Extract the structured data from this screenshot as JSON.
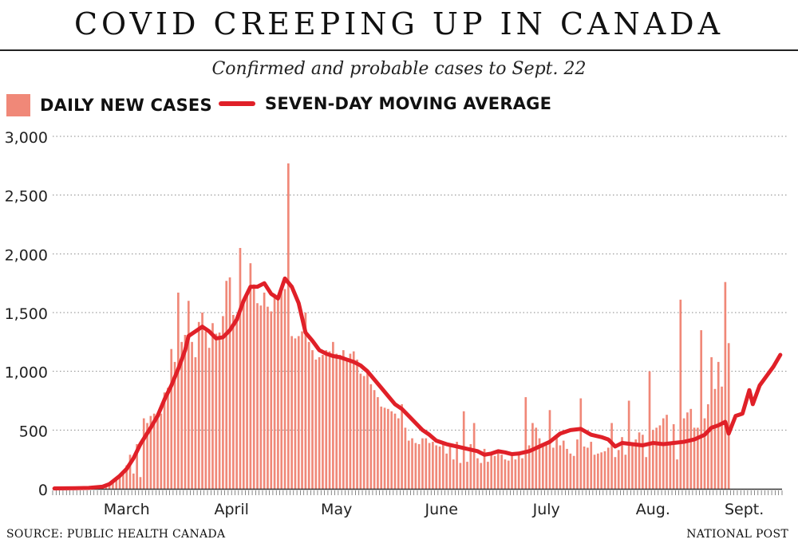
{
  "header": {
    "title": "COVID CREEPING UP IN CANADA",
    "subtitle": "Confirmed and probable cases to Sept. 22"
  },
  "legend": {
    "bars_label": "DAILY NEW CASES",
    "line_label": "SEVEN-DAY MOVING AVERAGE"
  },
  "footer": {
    "source": "SOURCE: PUBLIC HEALTH CANADA",
    "credit": "NATIONAL POST"
  },
  "colors": {
    "bars": "#f08878",
    "line": "#e02028",
    "grid": "#888888",
    "text": "#111111"
  },
  "chart_data": {
    "type": "bar",
    "overlay_type": "line",
    "x_start": "2020-02-24",
    "x_end": "2020-09-22",
    "ylim": [
      0,
      3000
    ],
    "yticks": [
      0,
      500,
      1000,
      1500,
      2000,
      2500,
      3000
    ],
    "ytick_labels": [
      "0",
      "500",
      "1,000",
      "1,500",
      "2,000",
      "2,500",
      "3,000"
    ],
    "grid": "horizontal dotted",
    "legend": "top-left",
    "month_labels": [
      {
        "label": "March",
        "start": "2020-03-01",
        "end": "2020-03-31"
      },
      {
        "label": "April",
        "start": "2020-04-01",
        "end": "2020-04-30"
      },
      {
        "label": "May",
        "start": "2020-05-01",
        "end": "2020-05-31"
      },
      {
        "label": "June",
        "start": "2020-06-01",
        "end": "2020-06-30"
      },
      {
        "label": "July",
        "start": "2020-07-01",
        "end": "2020-07-31"
      },
      {
        "label": "Aug.",
        "start": "2020-08-01",
        "end": "2020-08-31"
      },
      {
        "label": "Sept.",
        "start": "2020-09-01",
        "end": "2020-09-22"
      }
    ],
    "series": [
      {
        "name": "DAILY NEW CASES",
        "type": "bar",
        "values": [
          1,
          1,
          2,
          2,
          3,
          3,
          4,
          5,
          6,
          8,
          10,
          10,
          12,
          15,
          20,
          30,
          40,
          50,
          80,
          100,
          150,
          200,
          290,
          130,
          380,
          100,
          600,
          560,
          620,
          640,
          640,
          640,
          820,
          860,
          1190,
          1080,
          1670,
          1250,
          1310,
          1600,
          1250,
          1120,
          1420,
          1500,
          1340,
          1200,
          1410,
          1320,
          1330,
          1470,
          1770,
          1800,
          1480,
          1440,
          2050,
          1590,
          1660,
          1920,
          1740,
          1580,
          1560,
          1670,
          1550,
          1510,
          1660,
          1640,
          1680,
          1700,
          2770,
          1300,
          1280,
          1300,
          1340,
          1500,
          1250,
          1180,
          1100,
          1120,
          1140,
          1180,
          1170,
          1250,
          1150,
          1140,
          1180,
          1110,
          1150,
          1170,
          1100,
          980,
          960,
          1000,
          890,
          840,
          780,
          700,
          690,
          680,
          660,
          640,
          600,
          720,
          520,
          410,
          430,
          390,
          380,
          430,
          430,
          390,
          400,
          370,
          360,
          390,
          300,
          370,
          250,
          400,
          220,
          660,
          230,
          380,
          560,
          260,
          220,
          340,
          230,
          300,
          280,
          320,
          290,
          250,
          240,
          280,
          250,
          300,
          260,
          780,
          370,
          560,
          520,
          430,
          370,
          370,
          670,
          350,
          430,
          370,
          410,
          340,
          300,
          280,
          420,
          770,
          360,
          350,
          400,
          290,
          300,
          310,
          320,
          350,
          560,
          270,
          330,
          440,
          290,
          750,
          370,
          420,
          480,
          460,
          270,
          1000,
          500,
          520,
          540,
          600,
          630,
          400,
          550,
          250,
          1610,
          600,
          650,
          680,
          520,
          520,
          1350,
          600,
          720,
          1120,
          850,
          1080,
          870,
          1760,
          1240
        ],
        "values_note": "daily bars Feb 24 - Sept 22"
      },
      {
        "name": "SEVEN-DAY MOVING AVERAGE",
        "type": "line",
        "points": [
          [
            "2020-02-24",
            3
          ],
          [
            "2020-03-01",
            5
          ],
          [
            "2020-03-05",
            8
          ],
          [
            "2020-03-09",
            18
          ],
          [
            "2020-03-11",
            40
          ],
          [
            "2020-03-14",
            110
          ],
          [
            "2020-03-16",
            170
          ],
          [
            "2020-03-18",
            260
          ],
          [
            "2020-03-20",
            380
          ],
          [
            "2020-03-23",
            520
          ],
          [
            "2020-03-25",
            620
          ],
          [
            "2020-03-27",
            760
          ],
          [
            "2020-03-29",
            880
          ],
          [
            "2020-03-31",
            1020
          ],
          [
            "2020-04-02",
            1180
          ],
          [
            "2020-04-03",
            1300
          ],
          [
            "2020-04-05",
            1340
          ],
          [
            "2020-04-07",
            1380
          ],
          [
            "2020-04-09",
            1340
          ],
          [
            "2020-04-11",
            1280
          ],
          [
            "2020-04-13",
            1290
          ],
          [
            "2020-04-15",
            1350
          ],
          [
            "2020-04-17",
            1440
          ],
          [
            "2020-04-19",
            1600
          ],
          [
            "2020-04-21",
            1720
          ],
          [
            "2020-04-23",
            1720
          ],
          [
            "2020-04-25",
            1750
          ],
          [
            "2020-04-27",
            1660
          ],
          [
            "2020-04-29",
            1620
          ],
          [
            "2020-05-01",
            1790
          ],
          [
            "2020-05-03",
            1720
          ],
          [
            "2020-05-05",
            1580
          ],
          [
            "2020-05-07",
            1330
          ],
          [
            "2020-05-09",
            1260
          ],
          [
            "2020-05-11",
            1180
          ],
          [
            "2020-05-13",
            1150
          ],
          [
            "2020-05-15",
            1130
          ],
          [
            "2020-05-17",
            1120
          ],
          [
            "2020-05-19",
            1100
          ],
          [
            "2020-05-21",
            1080
          ],
          [
            "2020-05-23",
            1050
          ],
          [
            "2020-05-25",
            1000
          ],
          [
            "2020-05-27",
            930
          ],
          [
            "2020-05-29",
            860
          ],
          [
            "2020-05-31",
            790
          ],
          [
            "2020-06-02",
            720
          ],
          [
            "2020-06-04",
            680
          ],
          [
            "2020-06-06",
            620
          ],
          [
            "2020-06-08",
            560
          ],
          [
            "2020-06-10",
            500
          ],
          [
            "2020-06-12",
            460
          ],
          [
            "2020-06-14",
            410
          ],
          [
            "2020-06-17",
            380
          ],
          [
            "2020-06-20",
            360
          ],
          [
            "2020-06-23",
            340
          ],
          [
            "2020-06-26",
            320
          ],
          [
            "2020-06-28",
            290
          ],
          [
            "2020-06-30",
            300
          ],
          [
            "2020-07-02",
            320
          ],
          [
            "2020-07-04",
            310
          ],
          [
            "2020-07-06",
            295
          ],
          [
            "2020-07-08",
            300
          ],
          [
            "2020-07-11",
            320
          ],
          [
            "2020-07-14",
            360
          ],
          [
            "2020-07-17",
            400
          ],
          [
            "2020-07-20",
            470
          ],
          [
            "2020-07-23",
            500
          ],
          [
            "2020-07-26",
            510
          ],
          [
            "2020-07-29",
            460
          ],
          [
            "2020-08-01",
            440
          ],
          [
            "2020-08-03",
            420
          ],
          [
            "2020-08-05",
            360
          ],
          [
            "2020-08-07",
            390
          ],
          [
            "2020-08-10",
            380
          ],
          [
            "2020-08-13",
            370
          ],
          [
            "2020-08-16",
            390
          ],
          [
            "2020-08-19",
            380
          ],
          [
            "2020-08-22",
            390
          ],
          [
            "2020-08-25",
            400
          ],
          [
            "2020-08-28",
            420
          ],
          [
            "2020-08-31",
            460
          ],
          [
            "2020-09-02",
            520
          ],
          [
            "2020-09-04",
            540
          ],
          [
            "2020-09-06",
            570
          ],
          [
            "2020-09-07",
            470
          ],
          [
            "2020-09-09",
            620
          ],
          [
            "2020-09-11",
            640
          ],
          [
            "2020-09-13",
            840
          ],
          [
            "2020-09-14",
            720
          ],
          [
            "2020-09-16",
            880
          ],
          [
            "2020-09-18",
            960
          ],
          [
            "2020-09-20",
            1040
          ],
          [
            "2020-09-22",
            1140
          ]
        ]
      }
    ]
  }
}
